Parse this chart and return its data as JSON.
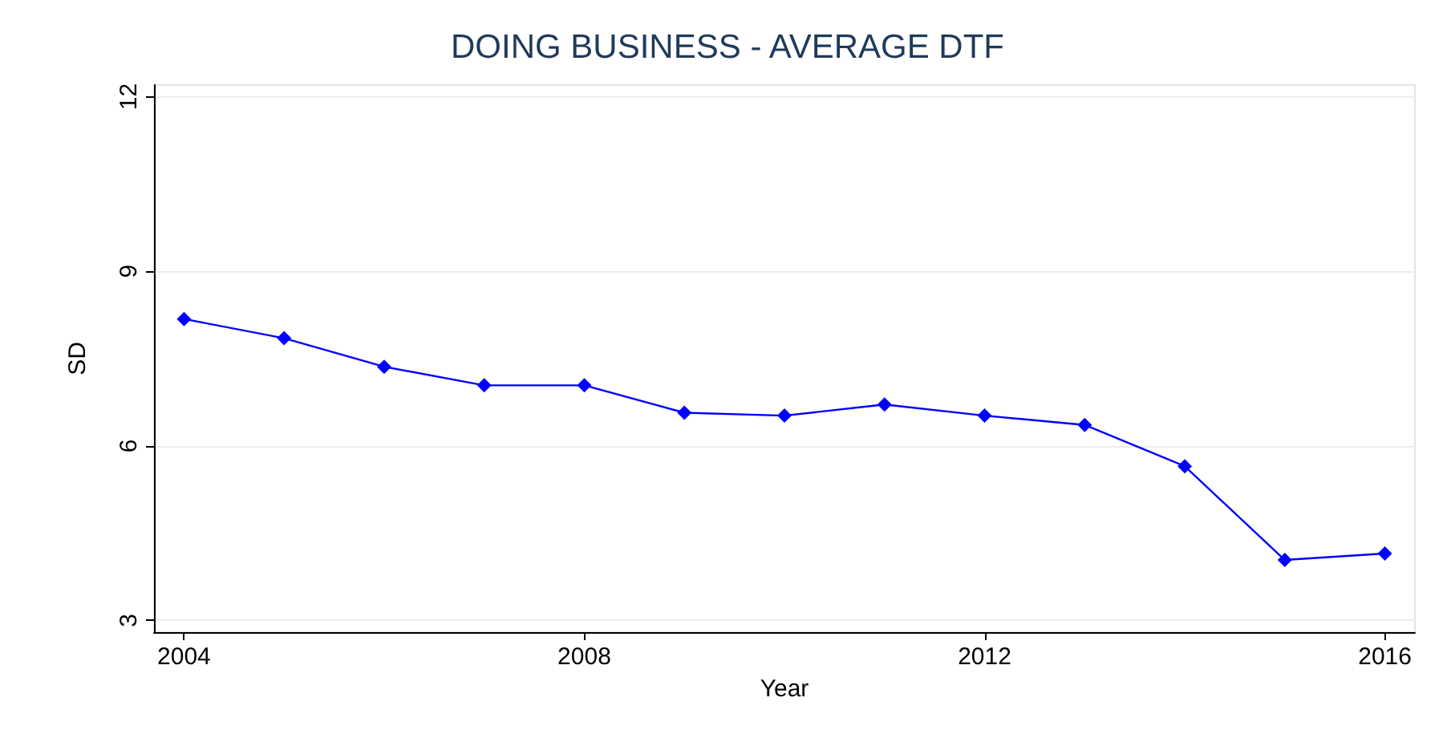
{
  "chart_data": {
    "type": "line",
    "title": "DOING BUSINESS - AVERAGE DTF",
    "xlabel": "Year",
    "ylabel": "SD",
    "x": [
      2004,
      2005,
      2006,
      2007,
      2008,
      2009,
      2010,
      2011,
      2012,
      2013,
      2014,
      2015,
      2016
    ],
    "series": [
      {
        "color": "#0000ff",
        "values": [
          8.18,
          7.85,
          7.36,
          7.04,
          7.04,
          6.57,
          6.52,
          6.71,
          6.52,
          6.36,
          5.65,
          4.04,
          4.15
        ]
      }
    ],
    "xlim": [
      2003.7,
      2016.3
    ],
    "xticks": [
      2004,
      2008,
      2012,
      2016
    ],
    "ylim": [
      2.8,
      12.2
    ],
    "yticks": [
      3,
      6,
      9,
      12
    ],
    "grid": "y",
    "marker": "diamond",
    "line_style": "solid"
  }
}
